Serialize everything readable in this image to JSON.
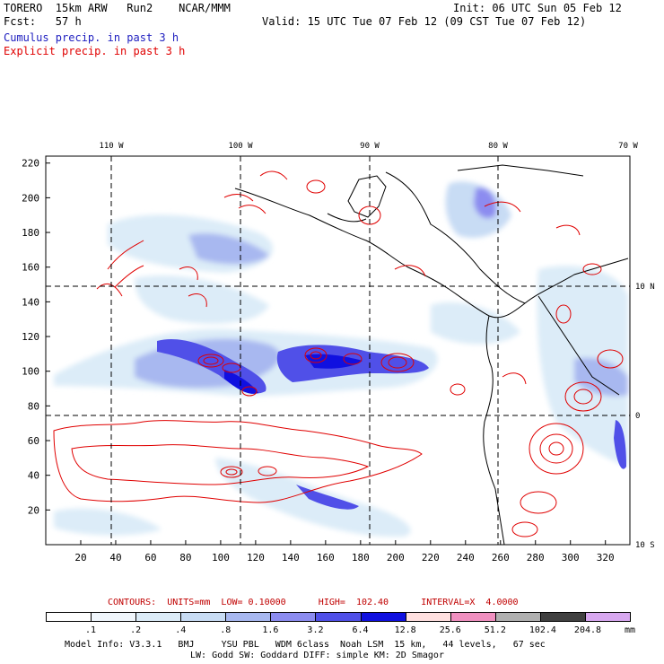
{
  "header": {
    "model_line": "TORERO  15km ARW   Run2    NCAR/MMM",
    "init_line": "Init: 06 UTC Sun 05 Feb 12",
    "fcst_line": "Fcst:   57 h",
    "valid_line": "Valid: 15 UTC Tue 07 Feb 12 (09 CST Tue 07 Feb 12)",
    "cumulus_label": "Cumulus precip. in past 3 h",
    "explicit_label": "Explicit precip. in past 3 h",
    "cumulus_color": "#2020c0",
    "explicit_color": "#e00000"
  },
  "map": {
    "top_longitude_labels": [
      "110 W",
      "100 W",
      "90 W",
      "80 W",
      "70 W"
    ],
    "right_latitude_labels": [
      "10 N",
      "0",
      "10 S"
    ],
    "x_ticks": [
      "20",
      "40",
      "60",
      "80",
      "100",
      "120",
      "140",
      "160",
      "180",
      "200",
      "220",
      "240",
      "260",
      "280",
      "300",
      "320"
    ],
    "y_ticks": [
      "20",
      "40",
      "60",
      "80",
      "100",
      "120",
      "140",
      "160",
      "180",
      "200",
      "220"
    ]
  },
  "contours": {
    "text": "CONTOURS:  UNITS=mm  LOW= 0.10000      HIGH=  102.40      INTERVAL=X  4.0000",
    "color": "#c00000"
  },
  "legend": {
    "values": [
      ".1",
      ".2",
      ".4",
      ".8",
      "1.6",
      "3.2",
      "6.4",
      "12.8",
      "25.6",
      "51.2",
      "102.4",
      "204.8"
    ],
    "unit": "mm",
    "colors": [
      "#ffffff",
      "#f0f6fc",
      "#dcecf8",
      "#c8dcf4",
      "#a8b8f0",
      "#8c8cf0",
      "#5050e8",
      "#1010e0",
      "#ffe0e0",
      "#f090c0",
      "#b0b0b0",
      "#404040",
      "#d8a8f0"
    ]
  },
  "footer": {
    "line1": "Model Info: V3.3.1   BMJ     YSU PBL   WDM 6class  Noah LSM  15 km,   44 levels,   67 sec",
    "line2": "LW: Godd SW: Goddard DIFF: simple KM: 2D Smagor"
  }
}
